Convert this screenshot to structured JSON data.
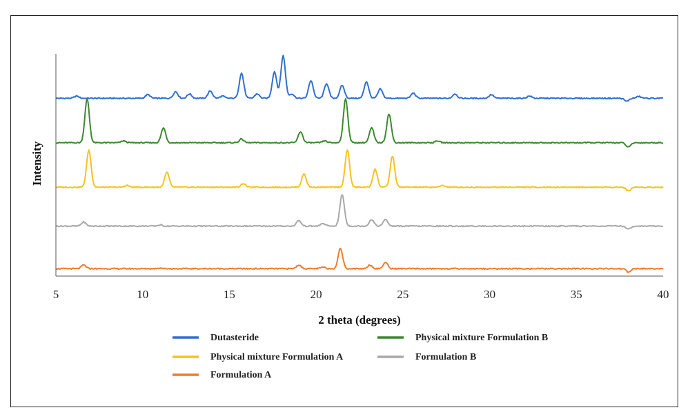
{
  "chart_data": {
    "type": "line",
    "xlabel": "2 theta (degrees)",
    "ylabel": "Intensity",
    "xlim": [
      5,
      40
    ],
    "x_ticks": [
      5,
      10,
      15,
      20,
      25,
      30,
      35,
      40
    ],
    "grid": false,
    "legend_position": "bottom",
    "series": [
      {
        "name": "Dutasteride",
        "color": "#2f6fd1",
        "baseline": 4.8,
        "peaks": [
          [
            6.2,
            0.06
          ],
          [
            10.3,
            0.1
          ],
          [
            11.9,
            0.18
          ],
          [
            12.7,
            0.12
          ],
          [
            13.9,
            0.2
          ],
          [
            14.6,
            0.06
          ],
          [
            15.7,
            0.68
          ],
          [
            16.6,
            0.12
          ],
          [
            17.6,
            0.72
          ],
          [
            18.1,
            1.15
          ],
          [
            18.6,
            0.12
          ],
          [
            19.7,
            0.48
          ],
          [
            20.6,
            0.4
          ],
          [
            21.5,
            0.35
          ],
          [
            22.9,
            0.45
          ],
          [
            23.7,
            0.25
          ],
          [
            25.6,
            0.14
          ],
          [
            28.0,
            0.12
          ],
          [
            30.1,
            0.1
          ],
          [
            32.3,
            0.06
          ],
          [
            37.9,
            -0.08
          ],
          [
            38.6,
            0.05
          ]
        ]
      },
      {
        "name": "Physical mixture Formulation B",
        "color": "#3a8a2e",
        "baseline": 3.6,
        "peaks": [
          [
            6.8,
            1.18
          ],
          [
            8.9,
            0.05
          ],
          [
            11.2,
            0.4
          ],
          [
            15.7,
            0.1
          ],
          [
            19.1,
            0.3
          ],
          [
            20.5,
            0.05
          ],
          [
            21.7,
            1.18
          ],
          [
            23.2,
            0.4
          ],
          [
            24.2,
            0.78
          ],
          [
            27.0,
            0.05
          ],
          [
            38.0,
            -0.12
          ]
        ]
      },
      {
        "name": "Physical mixture Formulation A",
        "color": "#f7c21a",
        "baseline": 2.4,
        "peaks": [
          [
            6.9,
            1.0
          ],
          [
            9.1,
            0.05
          ],
          [
            11.4,
            0.4
          ],
          [
            15.8,
            0.1
          ],
          [
            19.3,
            0.36
          ],
          [
            21.8,
            1.0
          ],
          [
            23.4,
            0.48
          ],
          [
            24.4,
            0.84
          ],
          [
            27.3,
            0.05
          ],
          [
            38.0,
            -0.1
          ]
        ]
      },
      {
        "name": "Formulation B",
        "color": "#a8a8a8",
        "baseline": 1.35,
        "peaks": [
          [
            6.6,
            0.11
          ],
          [
            11.0,
            0.03
          ],
          [
            19.0,
            0.15
          ],
          [
            20.4,
            0.07
          ],
          [
            21.5,
            0.85
          ],
          [
            23.2,
            0.18
          ],
          [
            24.0,
            0.18
          ],
          [
            38.0,
            -0.08
          ]
        ]
      },
      {
        "name": "Formulation A",
        "color": "#f27a2a",
        "baseline": 0.2,
        "peaks": [
          [
            6.6,
            0.1
          ],
          [
            11.0,
            0.02
          ],
          [
            19.0,
            0.1
          ],
          [
            20.4,
            0.04
          ],
          [
            21.4,
            0.55
          ],
          [
            23.1,
            0.1
          ],
          [
            24.0,
            0.17
          ],
          [
            38.0,
            -0.09
          ]
        ]
      }
    ]
  }
}
